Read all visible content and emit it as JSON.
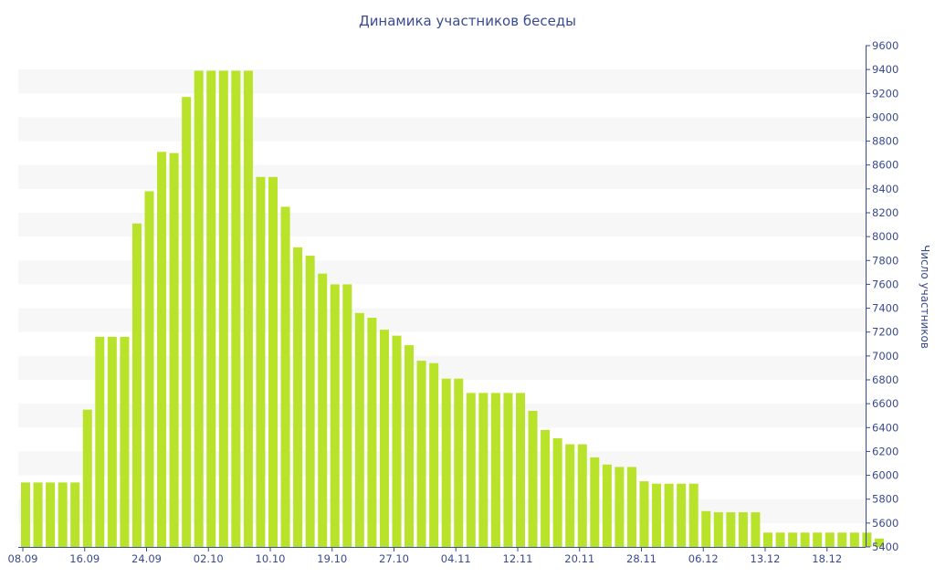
{
  "chart_data": {
    "type": "bar",
    "title": "Динамика участников беседы",
    "xlabel": "",
    "ylabel": "Число участников",
    "ylim": [
      5400,
      9600
    ],
    "y_ticks": [
      5400,
      5600,
      5800,
      6000,
      6200,
      6400,
      6600,
      6800,
      7000,
      7200,
      7400,
      7600,
      7800,
      8000,
      8200,
      8400,
      8600,
      8800,
      9000,
      9200,
      9400,
      9600
    ],
    "x_ticks": [
      {
        "label": "08.09",
        "index": 0
      },
      {
        "label": "16.09",
        "index": 5
      },
      {
        "label": "24.09",
        "index": 10
      },
      {
        "label": "02.10",
        "index": 15
      },
      {
        "label": "10.10",
        "index": 20
      },
      {
        "label": "19.10",
        "index": 25
      },
      {
        "label": "27.10",
        "index": 30
      },
      {
        "label": "04.11",
        "index": 35
      },
      {
        "label": "12.11",
        "index": 40
      },
      {
        "label": "20.11",
        "index": 45
      },
      {
        "label": "28.11",
        "index": 50
      },
      {
        "label": "06.12",
        "index": 55
      },
      {
        "label": "13.12",
        "index": 60
      },
      {
        "label": "18.12",
        "index": 65
      }
    ],
    "values": [
      5940,
      5940,
      5940,
      5940,
      5940,
      6550,
      7160,
      7160,
      7160,
      8110,
      8380,
      8710,
      8700,
      9170,
      9390,
      9390,
      9390,
      9390,
      9390,
      8500,
      8500,
      8250,
      7910,
      7840,
      7690,
      7600,
      7600,
      7360,
      7320,
      7220,
      7170,
      7090,
      6960,
      6940,
      6810,
      6810,
      6690,
      6690,
      6690,
      6690,
      6690,
      6540,
      6380,
      6310,
      6260,
      6260,
      6150,
      6090,
      6070,
      6070,
      5950,
      5930,
      5930,
      5930,
      5930,
      5700,
      5690,
      5690,
      5690,
      5690,
      5520,
      5520,
      5520,
      5520,
      5520,
      5520,
      5520,
      5520,
      5520,
      5470
    ],
    "grid": true,
    "y_axis_side": "right",
    "colors": {
      "bar": "#b9e22a",
      "axis_text": "#3a4a8f",
      "band": "#f7f7f7"
    }
  }
}
